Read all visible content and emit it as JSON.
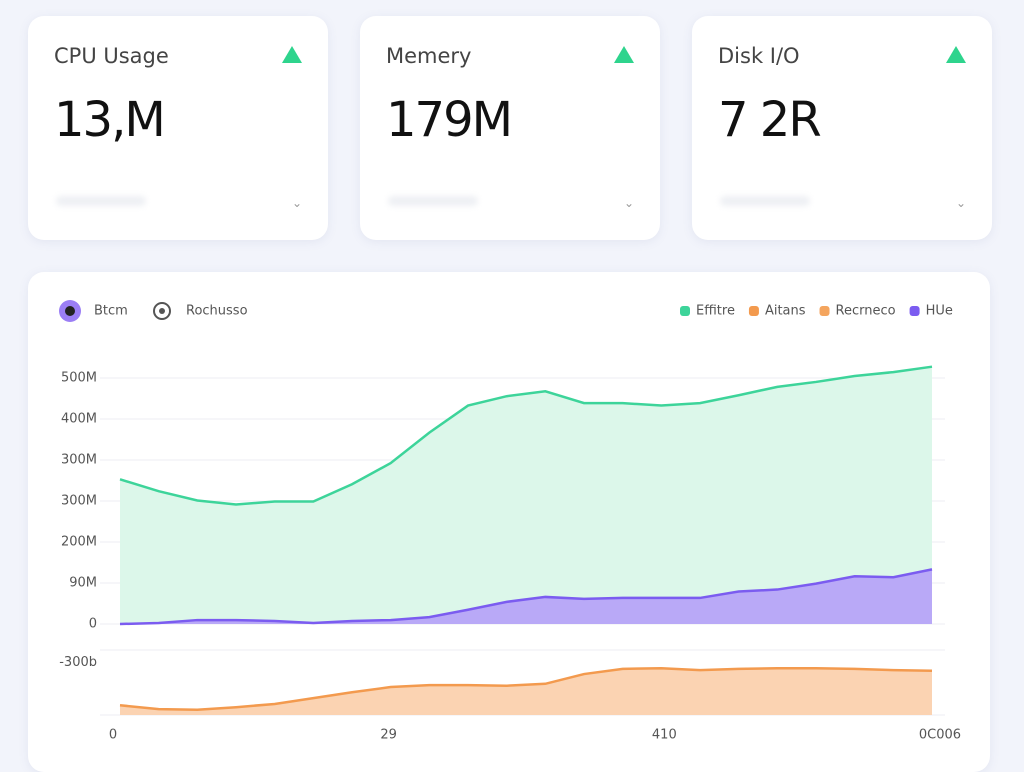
{
  "cards": [
    {
      "title": "CPU Usage",
      "value": "13,M"
    },
    {
      "title": "Memery",
      "value": "179M"
    },
    {
      "title": "Disk I/O",
      "value": "7 2R"
    }
  ],
  "toggles": [
    "Btcm",
    "Rochusso"
  ],
  "chart_data": {
    "type": "area",
    "legend": [
      {
        "name": "Effitre",
        "color": "#3dd49a"
      },
      {
        "name": "Aitans",
        "color": "#f39a4e"
      },
      {
        "name": "Recrneco",
        "color": "#f4a55e"
      },
      {
        "name": "HUe",
        "color": "#7b5cf0"
      }
    ],
    "y_labels": [
      "500M",
      "400M",
      "300M",
      "300M",
      "200M",
      "90M",
      "0"
    ],
    "y2_labels": [
      "-300b"
    ],
    "x_labels": [
      "0",
      "29",
      "410",
      "0C006"
    ],
    "ylim": [
      0,
      500
    ],
    "y2lim": [
      0,
      100
    ],
    "series": [
      {
        "color": "#3dd49a",
        "fill": "#dcf7ea",
        "values": [
          294,
          270,
          251,
          243,
          249,
          249,
          284,
          327,
          389,
          444,
          463,
          473,
          449,
          449,
          444,
          449,
          465,
          482,
          492,
          504,
          512,
          523
        ]
      },
      {
        "color": "#7b5cf0",
        "fill": "#b9a9f7",
        "values": [
          0,
          2,
          8,
          8,
          6,
          2,
          6,
          8,
          14,
          29,
          45,
          55,
          51,
          53,
          53,
          53,
          66,
          70,
          82,
          97,
          95,
          111
        ]
      },
      {
        "color": "#f39a4e",
        "fill": "#fbd3b2",
        "axis": "y2",
        "values": [
          15,
          9,
          8,
          12,
          17,
          26,
          35,
          43,
          46,
          46,
          45,
          48,
          63,
          71,
          72,
          69,
          71,
          72,
          72,
          71,
          69,
          68
        ]
      }
    ]
  }
}
